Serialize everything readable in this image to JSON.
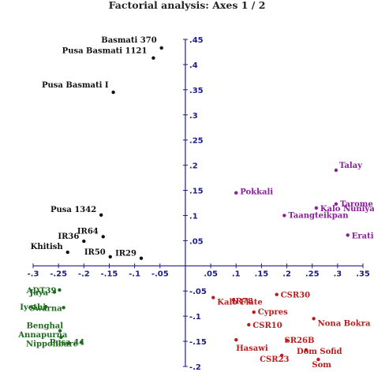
{
  "chart_data": {
    "type": "scatter",
    "title": "Factorial analysis: Axes 1 / 2",
    "xlabel": "",
    "ylabel": "",
    "xlim": [
      -0.3,
      0.35
    ],
    "ylim": [
      -0.2,
      0.45
    ],
    "grid": false,
    "x_ticks": [
      {
        "value": -0.3,
        "label": "-.3"
      },
      {
        "value": -0.25,
        "label": "-.25"
      },
      {
        "value": -0.2,
        "label": "-.2"
      },
      {
        "value": -0.15,
        "label": "-.15"
      },
      {
        "value": -0.1,
        "label": "-.1"
      },
      {
        "value": -0.05,
        "label": "-.05"
      },
      {
        "value": 0.05,
        "label": ".05"
      },
      {
        "value": 0.1,
        "label": ".1"
      },
      {
        "value": 0.15,
        "label": ".15"
      },
      {
        "value": 0.2,
        "label": ".2"
      },
      {
        "value": 0.25,
        "label": ".25"
      },
      {
        "value": 0.3,
        "label": ".3"
      },
      {
        "value": 0.35,
        "label": ".35"
      }
    ],
    "y_ticks": [
      {
        "value": 0.45,
        "label": ".45"
      },
      {
        "value": 0.4,
        "label": ".4"
      },
      {
        "value": 0.35,
        "label": ".35"
      },
      {
        "value": 0.3,
        "label": ".3"
      },
      {
        "value": 0.25,
        "label": ".25"
      },
      {
        "value": 0.2,
        "label": ".2"
      },
      {
        "value": 0.15,
        "label": ".15"
      },
      {
        "value": 0.1,
        "label": ".1"
      },
      {
        "value": 0.05,
        "label": ".05"
      },
      {
        "value": -0.05,
        "label": "-.05"
      },
      {
        "value": -0.1,
        "label": "-.1"
      },
      {
        "value": -0.15,
        "label": "-.15"
      },
      {
        "value": -0.2,
        "label": "-.2"
      }
    ],
    "colors": {
      "axis": "#1c1c8c",
      "black_group": "#111111",
      "purple_group": "#8a1e9a",
      "green_group": "#1e6b1e",
      "red_group": "#b81c1c"
    },
    "series": [
      {
        "color": "#111111",
        "points": [
          {
            "label": "Basmati 370",
            "x": -0.047,
            "y": 0.433
          },
          {
            "label": "Pusa Basmati 1121",
            "x": -0.063,
            "y": 0.413
          },
          {
            "label": "Pusa Basmati I",
            "x": -0.142,
            "y": 0.345
          },
          {
            "label": "Pusa 1342",
            "x": -0.166,
            "y": 0.101
          },
          {
            "label": "IR64",
            "x": -0.162,
            "y": 0.058
          },
          {
            "label": "IR36",
            "x": -0.2,
            "y": 0.049
          },
          {
            "label": "Khitish",
            "x": -0.232,
            "y": 0.027
          },
          {
            "label": "IR50",
            "x": -0.148,
            "y": 0.018
          },
          {
            "label": "IR29",
            "x": -0.087,
            "y": 0.015
          }
        ]
      },
      {
        "color": "#8a1e9a",
        "points": [
          {
            "label": "Talay",
            "x": 0.297,
            "y": 0.19
          },
          {
            "label": "Pokkali",
            "x": 0.1,
            "y": 0.145
          },
          {
            "label": "Tarome",
            "x": 0.297,
            "y": 0.123
          },
          {
            "label": "Kalo Nuniya",
            "x": 0.258,
            "y": 0.115
          },
          {
            "label": "Taangteikpan",
            "x": 0.195,
            "y": 0.1
          },
          {
            "label": "Eratio",
            "x": 0.32,
            "y": 0.061
          }
        ]
      },
      {
        "color": "#1e6b1e",
        "points": [
          {
            "label": "ADT39",
            "x": -0.248,
            "y": -0.048
          },
          {
            "label": "Jaya",
            "x": -0.258,
            "y": -0.052
          },
          {
            "label": "Iyothi",
            "x": -0.275,
            "y": -0.081
          },
          {
            "label": "Swarna",
            "x": -0.24,
            "y": -0.083
          },
          {
            "label": "Benghal",
            "x": -0.247,
            "y": -0.129
          },
          {
            "label": "Annapurna",
            "x": -0.245,
            "y": -0.142
          },
          {
            "label": "Nipponbare",
            "x": -0.23,
            "y": -0.154
          },
          {
            "label": "Pusa 44",
            "x": -0.205,
            "y": -0.152
          }
        ]
      },
      {
        "color": "#b81c1c",
        "points": [
          {
            "label": "CSR30",
            "x": 0.18,
            "y": -0.057
          },
          {
            "label": "Kalo Flate",
            "x": 0.055,
            "y": -0.063
          },
          {
            "label": "IR78",
            "x": 0.095,
            "y": -0.068
          },
          {
            "label": "Cypres",
            "x": 0.135,
            "y": -0.092
          },
          {
            "label": "CSR10",
            "x": 0.125,
            "y": -0.117
          },
          {
            "label": "Nona Bokra",
            "x": 0.253,
            "y": -0.105
          },
          {
            "label": "Hasawi",
            "x": 0.1,
            "y": -0.147
          },
          {
            "label": "SR26B",
            "x": 0.2,
            "y": -0.148
          },
          {
            "label": "Dom Sofid",
            "x": 0.238,
            "y": -0.167
          },
          {
            "label": "CSR23",
            "x": 0.19,
            "y": -0.178
          },
          {
            "label": "Som",
            "x": 0.262,
            "y": -0.186
          }
        ]
      }
    ]
  }
}
